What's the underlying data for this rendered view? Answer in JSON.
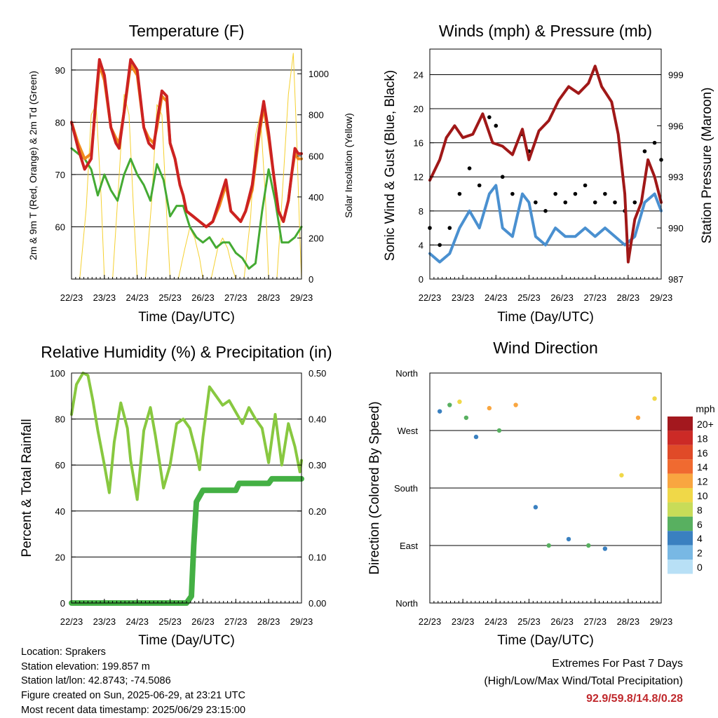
{
  "panels": {
    "temperature": {
      "title": "Temperature (F)",
      "ylabel_left": "2m & 9m T (Red, Orange) & 2m Td (Green)",
      "ylabel_right": "Solar Insolation (Yellow)",
      "xlabel": "Time (Day/UTC)"
    },
    "winds": {
      "title": "Winds (mph) & Pressure (mb)",
      "ylabel_left": "Sonic Wind & Gust (Blue, Black)",
      "ylabel_right": "Station Pressure (Maroon)",
      "xlabel": "Time (Day/UTC)"
    },
    "humidity": {
      "title": "Relative Humidity (%) & Precipitation (in)",
      "ylabel_left": "Percent & Total Rainfall",
      "xlabel": "Time (Day/UTC)"
    },
    "direction": {
      "title": "Wind Direction",
      "ylabel_left": "Direction (Colored By Speed)",
      "xlabel": "Time (Day/UTC)",
      "legend_unit": "mph"
    }
  },
  "chart_data": [
    {
      "type": "line",
      "title": "Temperature (F)",
      "xlabel": "Time (Day/UTC)",
      "x_ticks": [
        "22/23",
        "23/23",
        "24/23",
        "25/23",
        "26/23",
        "27/23",
        "28/23",
        "29/23"
      ],
      "y_left": {
        "label": "2m & 9m T (Red, Orange) & 2m Td (Green)",
        "ylim": [
          50,
          94
        ],
        "ticks": [
          60,
          70,
          80,
          90
        ]
      },
      "y_right": {
        "label": "Solar Insolation (Yellow)",
        "ylim": [
          0,
          1120
        ],
        "ticks": [
          0,
          200,
          400,
          600,
          800,
          1000
        ]
      },
      "series": [
        {
          "color": "#cc2222",
          "x": [
            0,
            0.2,
            0.4,
            0.6,
            0.75,
            0.85,
            1.0,
            1.2,
            1.35,
            1.45,
            1.6,
            1.8,
            2.0,
            2.2,
            2.35,
            2.5,
            2.6,
            2.75,
            2.9,
            3.0,
            3.15,
            3.3,
            3.4,
            3.5,
            3.7,
            3.9,
            4.1,
            4.3,
            4.5,
            4.7,
            4.85,
            5.0,
            5.15,
            5.3,
            5.5,
            5.7,
            5.85,
            6.0,
            6.15,
            6.3,
            6.45,
            6.6,
            6.7,
            6.8,
            6.9,
            7.0
          ],
          "y": [
            80,
            75,
            71,
            73,
            85,
            92,
            89,
            79,
            76,
            75,
            82,
            92,
            90,
            79,
            76,
            75,
            80,
            86,
            85,
            76,
            73,
            68,
            66,
            63,
            62,
            61,
            60,
            61,
            65,
            69,
            63,
            62,
            61,
            63,
            68,
            78,
            84,
            78,
            70,
            63,
            61,
            65,
            70,
            75,
            74,
            74
          ]
        },
        {
          "color": "#f08a1c",
          "x": [
            0,
            0.2,
            0.4,
            0.6,
            0.75,
            0.85,
            1.0,
            1.2,
            1.35,
            1.45,
            1.6,
            1.8,
            2.0,
            2.2,
            2.35,
            2.5,
            2.6,
            2.75,
            2.9,
            3.0,
            3.15,
            3.3,
            3.4,
            3.5,
            3.7,
            3.9,
            4.1,
            4.3,
            4.5,
            4.7,
            4.85,
            5.0,
            5.15,
            5.3,
            5.5,
            5.7,
            5.85,
            6.0,
            6.15,
            6.3,
            6.45,
            6.6,
            6.7,
            6.8,
            6.9,
            7.0
          ],
          "y": [
            80,
            76,
            73,
            74,
            84,
            91,
            88,
            79,
            77,
            76,
            82,
            91,
            89,
            79,
            77,
            76,
            79,
            85,
            84,
            76,
            73,
            68,
            66,
            63,
            62,
            61,
            60,
            61,
            64,
            68,
            63,
            62,
            61,
            63,
            67,
            77,
            83,
            77,
            70,
            63,
            61,
            65,
            70,
            74,
            73,
            73
          ]
        },
        {
          "color": "#44aa33",
          "x": [
            0,
            0.2,
            0.4,
            0.6,
            0.8,
            1.0,
            1.2,
            1.4,
            1.6,
            1.8,
            2.0,
            2.2,
            2.4,
            2.6,
            2.8,
            3.0,
            3.2,
            3.4,
            3.6,
            3.8,
            4.0,
            4.2,
            4.4,
            4.6,
            4.8,
            5.0,
            5.2,
            5.4,
            5.6,
            5.8,
            6.0,
            6.2,
            6.4,
            6.6,
            6.8,
            7.0
          ],
          "y": [
            75,
            74,
            73,
            71,
            66,
            70,
            67,
            65,
            70,
            73,
            70,
            68,
            65,
            72,
            69,
            62,
            64,
            64,
            60,
            58,
            57,
            58,
            56,
            57,
            57,
            55,
            54,
            52,
            53,
            63,
            71,
            65,
            57,
            57,
            58,
            60
          ]
        },
        {
          "color": "#f5d030",
          "x": [
            0,
            0.1,
            0.25,
            0.45,
            0.6,
            0.75,
            0.9,
            1.0,
            1.1,
            1.25,
            1.45,
            1.6,
            1.75,
            1.9,
            2.0,
            2.1,
            2.25,
            2.45,
            2.6,
            2.75,
            2.9,
            3.0,
            3.1,
            3.25,
            3.45,
            3.6,
            3.75,
            3.9,
            4.0,
            4.1,
            4.25,
            4.45,
            4.6,
            4.75,
            4.9,
            5.0,
            5.1,
            5.25,
            5.45,
            5.6,
            5.75,
            5.9,
            6.0,
            6.1,
            6.25,
            6.45,
            6.6,
            6.75,
            6.85,
            6.95,
            7.0
          ],
          "y": [
            0,
            0,
            0,
            350,
            800,
            850,
            400,
            0,
            0,
            0,
            500,
            900,
            800,
            300,
            0,
            0,
            0,
            400,
            850,
            800,
            300,
            0,
            0,
            0,
            150,
            250,
            200,
            100,
            0,
            0,
            0,
            150,
            200,
            150,
            50,
            0,
            0,
            0,
            300,
            700,
            800,
            400,
            0,
            0,
            0,
            500,
            900,
            1100,
            700,
            200,
            0
          ]
        }
      ]
    },
    {
      "type": "scatter",
      "title": "Winds (mph) & Pressure (mb)",
      "xlabel": "Time (Day/UTC)",
      "x_ticks": [
        "22/23",
        "23/23",
        "24/23",
        "25/23",
        "26/23",
        "27/23",
        "28/23",
        "29/23"
      ],
      "y_left": {
        "label": "Sonic Wind & Gust (Blue, Black)",
        "ylim": [
          0,
          27
        ],
        "ticks": [
          0,
          4,
          8,
          12,
          16,
          20,
          24
        ]
      },
      "y_right": {
        "label": "Station Pressure (Maroon)",
        "ylim": [
          987,
          1000.5
        ],
        "ticks": [
          987,
          990,
          993,
          996,
          999
        ]
      },
      "series": [
        {
          "color": "#4a90d0",
          "x": [
            0,
            0.3,
            0.6,
            0.9,
            1.2,
            1.5,
            1.8,
            2.0,
            2.2,
            2.5,
            2.8,
            3.0,
            3.2,
            3.5,
            3.8,
            4.1,
            4.4,
            4.7,
            5.0,
            5.3,
            5.6,
            5.9,
            6.2,
            6.5,
            6.8,
            7.0
          ],
          "y": [
            3,
            2,
            3,
            6,
            8,
            6,
            10,
            11,
            6,
            5,
            10,
            9,
            5,
            4,
            6,
            5,
            5,
            6,
            5,
            6,
            5,
            4,
            5,
            9,
            10,
            8
          ]
        },
        {
          "color": "#000000",
          "x": [
            0,
            0.3,
            0.6,
            0.9,
            1.2,
            1.5,
            1.8,
            2.0,
            2.2,
            2.5,
            2.8,
            3.0,
            3.2,
            3.5,
            3.8,
            4.1,
            4.4,
            4.7,
            5.0,
            5.3,
            5.6,
            5.9,
            6.2,
            6.5,
            6.8,
            7.0
          ],
          "y": [
            6,
            4,
            6,
            10,
            13,
            11,
            19,
            18,
            12,
            10,
            17,
            15,
            9,
            8,
            10,
            9,
            10,
            11,
            9,
            10,
            9,
            8,
            9,
            15,
            16,
            14
          ]
        },
        {
          "color": "#a01818",
          "x": [
            0,
            0.3,
            0.5,
            0.75,
            1.0,
            1.3,
            1.6,
            1.9,
            2.2,
            2.5,
            2.8,
            3.0,
            3.3,
            3.6,
            3.9,
            4.2,
            4.5,
            4.8,
            5.0,
            5.2,
            5.5,
            5.7,
            5.9,
            6.0,
            6.2,
            6.4,
            6.6,
            6.8,
            7.0
          ],
          "y": [
            992.8,
            994.0,
            995.3,
            996.0,
            995.3,
            995.5,
            996.7,
            995.0,
            994.8,
            994.3,
            995.8,
            994.0,
            995.7,
            996.3,
            997.5,
            998.3,
            997.9,
            998.5,
            999.5,
            998.3,
            997.4,
            995.5,
            992.0,
            988.0,
            990.5,
            991.5,
            994.0,
            993.0,
            991.5
          ]
        }
      ]
    },
    {
      "type": "line",
      "title": "Relative Humidity (%) & Precipitation (in)",
      "xlabel": "Time (Day/UTC)",
      "x_ticks": [
        "22/23",
        "23/23",
        "24/23",
        "25/23",
        "26/23",
        "27/23",
        "28/23",
        "29/23"
      ],
      "y_left": {
        "label": "Percent & Total Rainfall",
        "ylim": [
          0,
          100
        ],
        "ticks": [
          0,
          20,
          40,
          60,
          80,
          100
        ]
      },
      "y_right": {
        "label": "",
        "ylim": [
          0,
          0.5
        ],
        "ticks": [
          "0.00",
          "0.10",
          "0.20",
          "0.30",
          "0.40",
          "0.50"
        ]
      },
      "series": [
        {
          "color": "#88c840",
          "x": [
            0,
            0.15,
            0.35,
            0.5,
            0.65,
            0.8,
            1.0,
            1.15,
            1.3,
            1.5,
            1.7,
            1.8,
            2.0,
            2.2,
            2.4,
            2.55,
            2.8,
            3.0,
            3.2,
            3.4,
            3.6,
            3.8,
            3.9,
            4.0,
            4.2,
            4.4,
            4.6,
            4.8,
            5.0,
            5.2,
            5.4,
            5.6,
            5.8,
            6.0,
            6.2,
            6.4,
            6.6,
            6.8,
            6.95,
            7.0
          ],
          "y": [
            82,
            95,
            100,
            99,
            88,
            75,
            60,
            48,
            70,
            87,
            76,
            62,
            45,
            75,
            85,
            73,
            50,
            60,
            78,
            80,
            76,
            65,
            58,
            72,
            94,
            90,
            86,
            88,
            83,
            78,
            85,
            80,
            76,
            61,
            82,
            60,
            78,
            68,
            57,
            62
          ]
        },
        {
          "color": "#44b044",
          "x": [
            0,
            1,
            2,
            3,
            3.5,
            3.65,
            3.72,
            3.8,
            4.0,
            4.5,
            5.0,
            5.1,
            6.0,
            6.1,
            6.5,
            7.0
          ],
          "y": [
            0,
            0,
            0,
            0,
            0,
            3,
            25,
            44,
            49,
            49,
            49,
            52,
            52,
            54,
            54,
            54
          ]
        }
      ]
    },
    {
      "type": "scatter",
      "title": "Wind Direction",
      "xlabel": "Time (Day/UTC)",
      "x_ticks": [
        "22/23",
        "23/23",
        "24/23",
        "25/23",
        "26/23",
        "27/23",
        "28/23",
        "29/23"
      ],
      "y_left": {
        "label": "Direction (Colored By Speed)",
        "ticks": [
          "North",
          "East",
          "South",
          "West",
          "North"
        ]
      },
      "legend": {
        "title": "mph",
        "labels": [
          "20+",
          "18",
          "16",
          "14",
          "12",
          "10",
          "8",
          "6",
          "4",
          "2",
          "0"
        ],
        "colors": [
          "#a3181e",
          "#cc2a26",
          "#e04a28",
          "#f06a30",
          "#f9a640",
          "#f0d848",
          "#c8dc58",
          "#58b060",
          "#3a80c0",
          "#78b8e4",
          "#b8e0f6"
        ]
      },
      "points": [
        {
          "x": 0.3,
          "dir": 300,
          "speed": 3
        },
        {
          "x": 0.6,
          "dir": 310,
          "speed": 6
        },
        {
          "x": 0.9,
          "dir": 315,
          "speed": 9
        },
        {
          "x": 1.1,
          "dir": 290,
          "speed": 5
        },
        {
          "x": 1.4,
          "dir": 260,
          "speed": 3
        },
        {
          "x": 1.8,
          "dir": 305,
          "speed": 12
        },
        {
          "x": 2.1,
          "dir": 270,
          "speed": 5
        },
        {
          "x": 2.6,
          "dir": 310,
          "speed": 11
        },
        {
          "x": 3.2,
          "dir": 150,
          "speed": 3
        },
        {
          "x": 3.6,
          "dir": 90,
          "speed": 6
        },
        {
          "x": 4.2,
          "dir": 100,
          "speed": 4
        },
        {
          "x": 4.8,
          "dir": 90,
          "speed": 5
        },
        {
          "x": 5.3,
          "dir": 85,
          "speed": 4
        },
        {
          "x": 5.8,
          "dir": 200,
          "speed": 9
        },
        {
          "x": 6.3,
          "dir": 290,
          "speed": 12
        },
        {
          "x": 6.8,
          "dir": 320,
          "speed": 10
        }
      ]
    }
  ],
  "info": {
    "location": "Location: Sprakers",
    "elevation": "Station elevation: 199.857 m",
    "latlon": "Station lat/lon: 42.8743; -74.5086",
    "created": "Figure created on Sun, 2025-06-29, at 23:21 UTC",
    "recent": "Most recent data timestamp: 2025/06/29 23:15:00"
  },
  "extremes": {
    "line1": "Extremes For Past 7 Days",
    "line2": "(High/Low/Max Wind/Total Precipitation)",
    "values": "92.9/59.8/14.8/0.28"
  }
}
